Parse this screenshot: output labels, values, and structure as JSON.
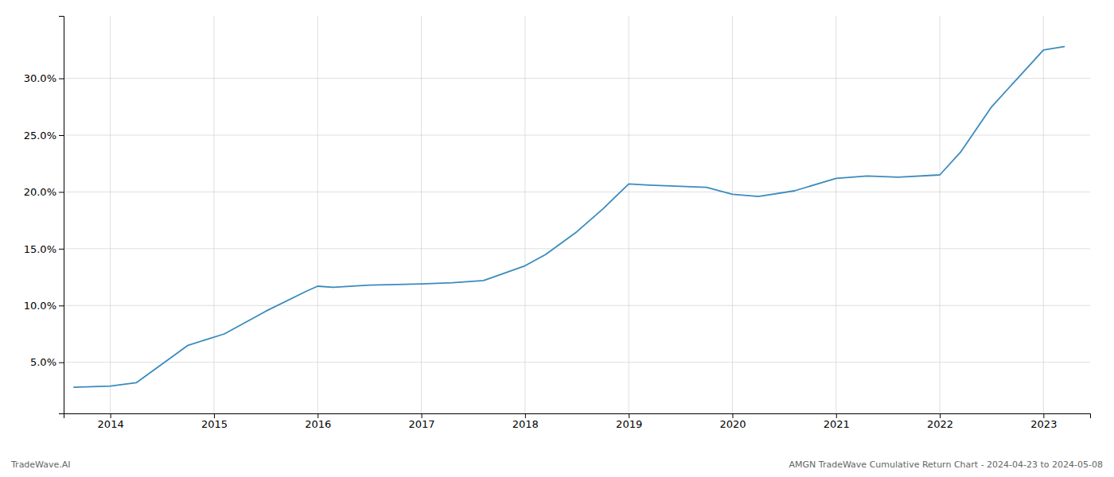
{
  "chart_data": {
    "type": "line",
    "x": [
      2013.65,
      2014.0,
      2014.25,
      2014.75,
      2015.1,
      2015.5,
      2015.9,
      2016.0,
      2016.15,
      2016.5,
      2017.0,
      2017.3,
      2017.6,
      2018.0,
      2018.2,
      2018.5,
      2018.75,
      2019.0,
      2019.2,
      2019.5,
      2019.75,
      2020.0,
      2020.25,
      2020.6,
      2021.0,
      2021.3,
      2021.6,
      2022.0,
      2022.2,
      2022.5,
      2022.75,
      2023.0,
      2023.2
    ],
    "values": [
      2.8,
      2.9,
      3.2,
      6.5,
      7.5,
      9.5,
      11.3,
      11.7,
      11.6,
      11.8,
      11.9,
      12.0,
      12.2,
      13.5,
      14.5,
      16.5,
      18.5,
      20.7,
      20.6,
      20.5,
      20.4,
      19.8,
      19.6,
      20.1,
      21.2,
      21.4,
      21.3,
      21.5,
      23.5,
      27.5,
      30.0,
      32.5,
      32.8
    ],
    "color": "#3a8bbf",
    "xlim": [
      2013.55,
      2023.45
    ],
    "ylim": [
      0.5,
      35.5
    ],
    "xticks": [
      2014,
      2015,
      2016,
      2017,
      2018,
      2019,
      2020,
      2021,
      2022,
      2023
    ],
    "yticks": [
      {
        "value": 5.0,
        "label": "5.0%"
      },
      {
        "value": 10.0,
        "label": "10.0%"
      },
      {
        "value": 15.0,
        "label": "15.0%"
      },
      {
        "value": 20.0,
        "label": "20.0%"
      },
      {
        "value": 25.0,
        "label": "25.0%"
      },
      {
        "value": 30.0,
        "label": "30.0%"
      }
    ],
    "grid": true,
    "annotations": [
      "TradeWave.AI",
      "AMGN TradeWave Cumulative Return Chart - 2024-04-23 to 2024-05-08"
    ]
  }
}
